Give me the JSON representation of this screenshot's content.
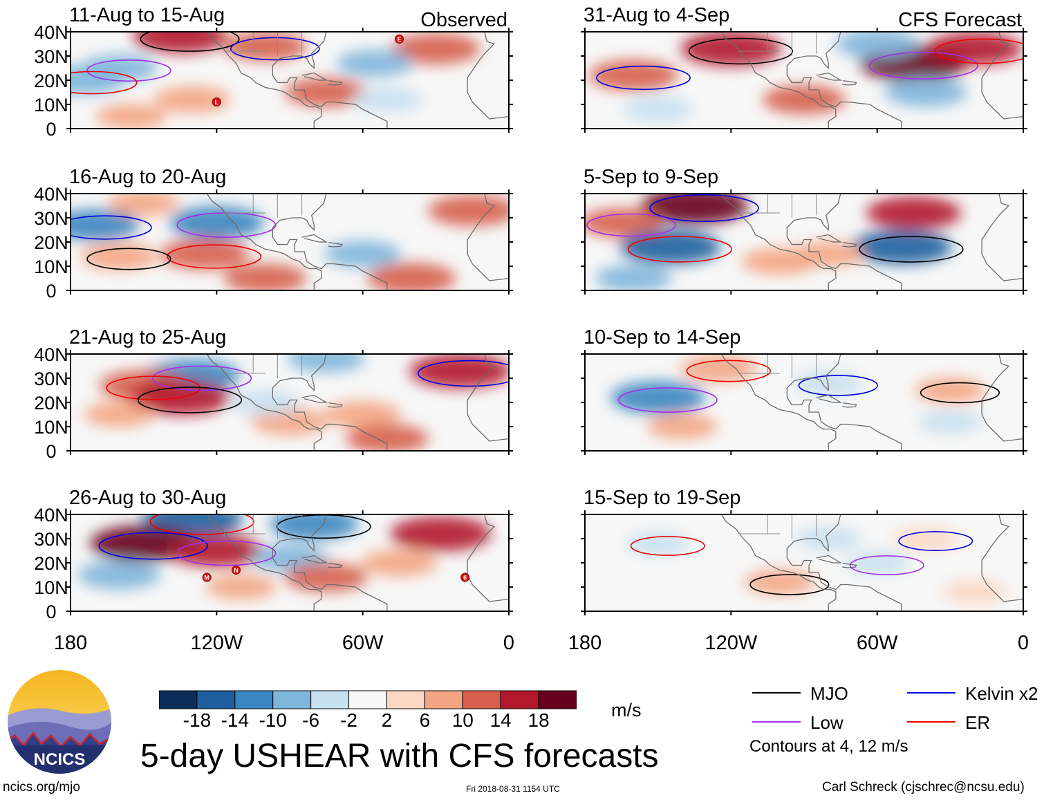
{
  "header": {
    "observed_label": "Observed",
    "forecast_label": "CFS Forecast"
  },
  "axes": {
    "y_ticks": [
      "40N",
      "30N",
      "20N",
      "10N",
      "0"
    ],
    "x_ticks": [
      "180",
      "120W",
      "60W",
      "0"
    ]
  },
  "chart_data": {
    "type": "heatmap",
    "title": "5-day USHEAR with CFS forecasts",
    "variable": "USHEAR",
    "units": "m/s",
    "xlim": [
      -180,
      0
    ],
    "ylim": [
      0,
      40
    ],
    "x_tick_values": [
      -180,
      -120,
      -60,
      0
    ],
    "y_tick_values": [
      0,
      10,
      20,
      30,
      40
    ],
    "colorbar": {
      "ticks": [
        "-18",
        "-14",
        "-10",
        "-6",
        "-2",
        "2",
        "6",
        "10",
        "14",
        "18"
      ],
      "tick_values": [
        -18,
        -14,
        -10,
        -6,
        -2,
        2,
        6,
        10,
        14,
        18
      ],
      "colors": [
        "#0c2f5a",
        "#1f5f9e",
        "#3b86c0",
        "#7fb6db",
        "#c6e0ef",
        "#f7f7f7",
        "#fcd7c3",
        "#f4a583",
        "#d6604d",
        "#b2182b",
        "#67001f"
      ]
    },
    "contour_levels": [
      4,
      12
    ],
    "legend": [
      {
        "name": "MJO",
        "color": "#000000"
      },
      {
        "name": "Kelvin x2",
        "color": "#0000dd"
      },
      {
        "name": "Low",
        "color": "#a030e8"
      },
      {
        "name": "ER",
        "color": "#ee0000"
      }
    ],
    "panels": [
      {
        "period": "11-Aug to 15-Aug",
        "source": "Observed",
        "anomalies": [
          {
            "lon": -135,
            "lat": 38,
            "value": 14
          },
          {
            "lon": -100,
            "lat": 34,
            "value": 10
          },
          {
            "lon": -160,
            "lat": 25,
            "value": -8
          },
          {
            "lon": -175,
            "lat": 20,
            "value": -10
          },
          {
            "lon": -130,
            "lat": 12,
            "value": 8
          },
          {
            "lon": -75,
            "lat": 15,
            "value": 10
          },
          {
            "lon": -30,
            "lat": 33,
            "value": 12
          },
          {
            "lon": -55,
            "lat": 27,
            "value": -8
          },
          {
            "lon": -50,
            "lat": 12,
            "value": -6
          },
          {
            "lon": -155,
            "lat": 5,
            "value": 6
          }
        ],
        "tropical_cyclones": [
          {
            "symbol": "L",
            "lon": -120,
            "lat": 11
          },
          {
            "symbol": "E",
            "lon": -45,
            "lat": 37
          }
        ]
      },
      {
        "period": "16-Aug to 20-Aug",
        "source": "Observed",
        "anomalies": [
          {
            "lon": -170,
            "lat": 27,
            "value": -12
          },
          {
            "lon": -120,
            "lat": 28,
            "value": -14
          },
          {
            "lon": -125,
            "lat": 15,
            "value": 12
          },
          {
            "lon": -160,
            "lat": 14,
            "value": 8
          },
          {
            "lon": -100,
            "lat": 5,
            "value": 10
          },
          {
            "lon": -40,
            "lat": 5,
            "value": 12
          },
          {
            "lon": -15,
            "lat": 33,
            "value": 12
          },
          {
            "lon": -60,
            "lat": 15,
            "value": -8
          },
          {
            "lon": -150,
            "lat": 36,
            "value": 6
          }
        ]
      },
      {
        "period": "21-Aug to 25-Aug",
        "source": "Observed",
        "anomalies": [
          {
            "lon": -130,
            "lat": 31,
            "value": -14
          },
          {
            "lon": -150,
            "lat": 27,
            "value": 12
          },
          {
            "lon": -135,
            "lat": 22,
            "value": 16
          },
          {
            "lon": -20,
            "lat": 33,
            "value": 16
          },
          {
            "lon": -160,
            "lat": 15,
            "value": 6
          },
          {
            "lon": -90,
            "lat": 12,
            "value": 8
          },
          {
            "lon": -60,
            "lat": 15,
            "value": 8
          },
          {
            "lon": -100,
            "lat": 20,
            "value": -6
          },
          {
            "lon": -75,
            "lat": 38,
            "value": -8
          },
          {
            "lon": -50,
            "lat": 5,
            "value": 10
          }
        ]
      },
      {
        "period": "26-Aug to 30-Aug",
        "source": "Observed",
        "anomalies": [
          {
            "lon": -130,
            "lat": 38,
            "value": -16
          },
          {
            "lon": -80,
            "lat": 36,
            "value": -12
          },
          {
            "lon": -150,
            "lat": 28,
            "value": 18
          },
          {
            "lon": -120,
            "lat": 25,
            "value": 14
          },
          {
            "lon": -28,
            "lat": 32,
            "value": 16
          },
          {
            "lon": -90,
            "lat": 22,
            "value": -8
          },
          {
            "lon": -160,
            "lat": 15,
            "value": -10
          },
          {
            "lon": -75,
            "lat": 14,
            "value": 10
          },
          {
            "lon": -45,
            "lat": 20,
            "value": 8
          },
          {
            "lon": -110,
            "lat": 10,
            "value": 6
          }
        ],
        "tropical_cyclones": [
          {
            "symbol": "M",
            "lon": -124,
            "lat": 14
          },
          {
            "symbol": "N",
            "lon": -112,
            "lat": 17
          },
          {
            "symbol": "6",
            "lon": -18,
            "lat": 14
          }
        ]
      },
      {
        "period": "31-Aug to 4-Sep",
        "source": "CFS Forecast",
        "anomalies": [
          {
            "lon": -120,
            "lat": 33,
            "value": 16
          },
          {
            "lon": -160,
            "lat": 22,
            "value": 12
          },
          {
            "lon": -45,
            "lat": 27,
            "value": 18
          },
          {
            "lon": -20,
            "lat": 33,
            "value": 14
          },
          {
            "lon": -90,
            "lat": 12,
            "value": 10
          },
          {
            "lon": -40,
            "lat": 15,
            "value": -10
          },
          {
            "lon": -60,
            "lat": 35,
            "value": -10
          },
          {
            "lon": -150,
            "lat": 8,
            "value": -6
          }
        ]
      },
      {
        "period": "5-Sep to 9-Sep",
        "source": "CFS Forecast",
        "anomalies": [
          {
            "lon": -135,
            "lat": 35,
            "value": 18
          },
          {
            "lon": -165,
            "lat": 28,
            "value": 10
          },
          {
            "lon": -145,
            "lat": 18,
            "value": -16
          },
          {
            "lon": -50,
            "lat": 18,
            "value": -16
          },
          {
            "lon": -45,
            "lat": 32,
            "value": 14
          },
          {
            "lon": -100,
            "lat": 12,
            "value": 8
          },
          {
            "lon": -80,
            "lat": 15,
            "value": 6
          },
          {
            "lon": -160,
            "lat": 5,
            "value": -8
          }
        ]
      },
      {
        "period": "10-Sep to 14-Sep",
        "source": "CFS Forecast",
        "anomalies": [
          {
            "lon": -150,
            "lat": 22,
            "value": -14
          },
          {
            "lon": -125,
            "lat": 34,
            "value": 8
          },
          {
            "lon": -30,
            "lat": 25,
            "value": 6
          },
          {
            "lon": -80,
            "lat": 28,
            "value": -6
          },
          {
            "lon": -140,
            "lat": 10,
            "value": 6
          },
          {
            "lon": -30,
            "lat": 12,
            "value": -4
          }
        ]
      },
      {
        "period": "15-Sep to 19-Sep",
        "source": "CFS Forecast",
        "anomalies": [
          {
            "lon": -150,
            "lat": 28,
            "value": -4
          },
          {
            "lon": -100,
            "lat": 12,
            "value": 6
          },
          {
            "lon": -40,
            "lat": 30,
            "value": 4
          },
          {
            "lon": -60,
            "lat": 20,
            "value": -4
          },
          {
            "lon": -80,
            "lat": 30,
            "value": -4
          },
          {
            "lon": -20,
            "lat": 8,
            "value": 4
          }
        ]
      }
    ]
  },
  "legend_note": "Contours at 4, 12 m/s",
  "logo": {
    "text": "NCICS"
  },
  "footer": {
    "site": "ncics.org/mjo",
    "timestamp": "Fri 2018-08-31 1154 UTC",
    "credit": "Carl Schreck (cjschrec@ncsu.edu)"
  }
}
